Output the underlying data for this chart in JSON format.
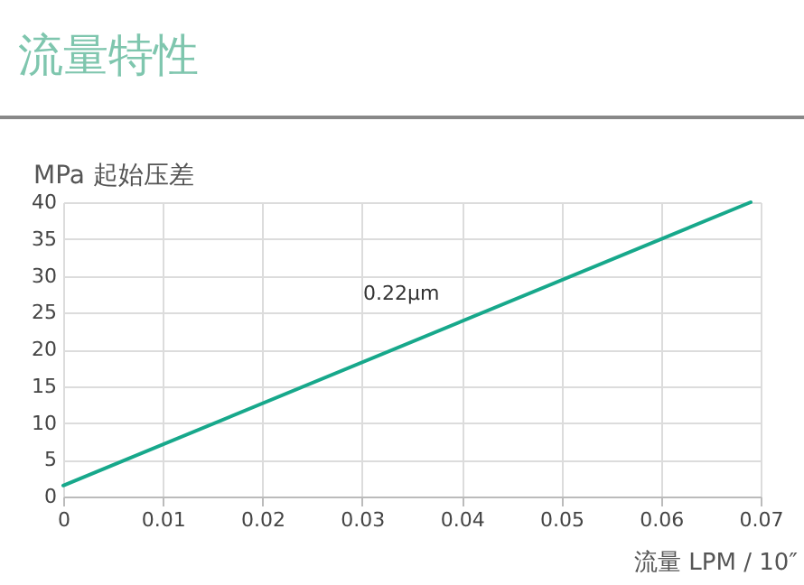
{
  "chart_data": {
    "type": "line",
    "title": "流量特性",
    "xlabel": "流量 LPM / 10″",
    "ylabel": "MPa 起始压差",
    "x": [
      0,
      0.069
    ],
    "series": [
      {
        "color": "#17a88b",
        "values": [
          1.5,
          40
        ]
      }
    ],
    "xlim": [
      0,
      0.07
    ],
    "xticks": [
      0,
      0.01,
      0.02,
      0.03,
      0.04,
      0.05,
      0.06,
      0.07
    ],
    "ylim": [
      0,
      40
    ],
    "yticks": [
      0,
      5,
      10,
      15,
      20,
      25,
      30,
      35,
      40
    ],
    "grid": true,
    "marker": "none",
    "line_style": "solid",
    "annotations": [
      "0.22μm"
    ]
  }
}
